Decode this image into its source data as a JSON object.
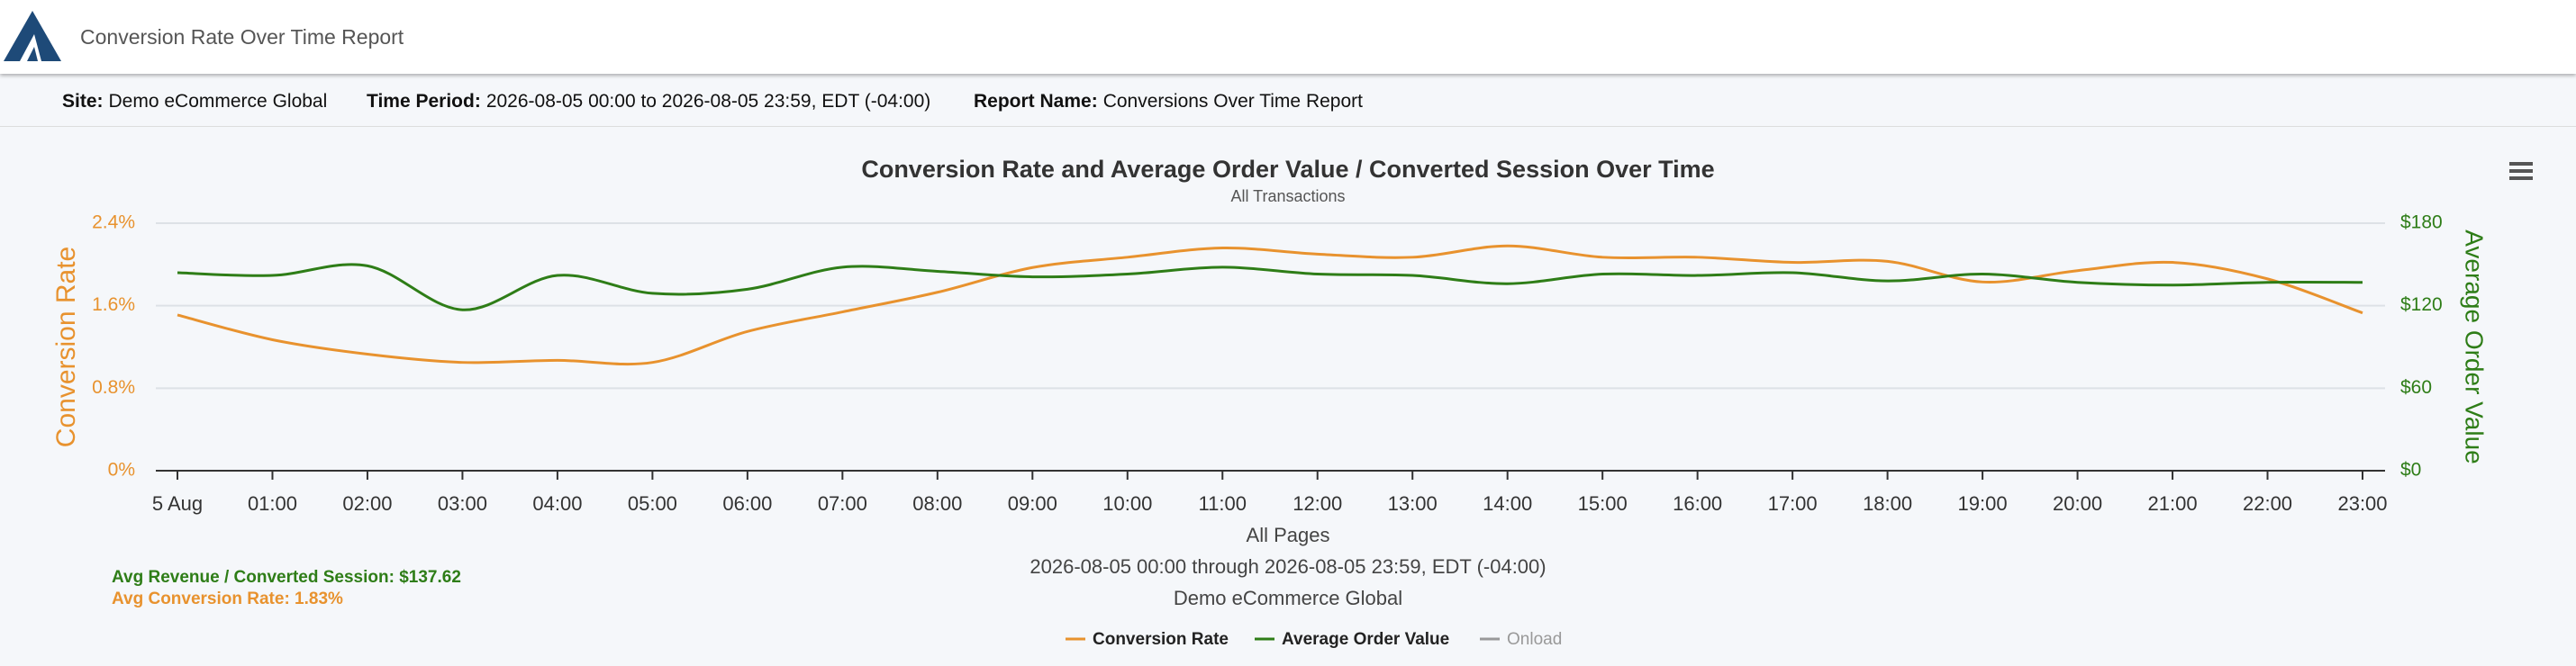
{
  "header": {
    "title": "Conversion Rate Over Time Report"
  },
  "info": [
    {
      "label": "Site:",
      "value": "Demo eCommerce Global"
    },
    {
      "label": "Time Period:",
      "value": "2026-08-05 00:00 to 2026-08-05 23:59, EDT (-04:00)"
    },
    {
      "label": "Report Name:",
      "value": "Conversions Over Time Report"
    }
  ],
  "chart_data": {
    "type": "line",
    "title": "Conversion Rate and Average Order Value / Converted Session Over Time",
    "subtitle": "All Transactions",
    "ylabel": "Conversion Rate",
    "y2label": "Average Order Value",
    "xlabel": "All Pages",
    "caption": [
      "2026-08-05 00:00 through 2026-08-05 23:59, EDT (-04:00)",
      "Demo eCommerce Global"
    ],
    "summary": [
      {
        "text": "Avg Revenue / Converted Session: $137.62",
        "color": "#2e7d17"
      },
      {
        "text": "Avg Conversion Rate: 1.83%",
        "color": "#e8922e"
      }
    ],
    "categories": [
      "5 Aug",
      "01:00",
      "02:00",
      "03:00",
      "04:00",
      "05:00",
      "06:00",
      "07:00",
      "08:00",
      "09:00",
      "10:00",
      "11:00",
      "12:00",
      "13:00",
      "14:00",
      "15:00",
      "16:00",
      "17:00",
      "18:00",
      "19:00",
      "20:00",
      "21:00",
      "22:00",
      "23:00"
    ],
    "series": [
      {
        "name": "Conversion Rate",
        "color": "#e8922e",
        "axis": "y",
        "values": [
          1.51,
          1.27,
          1.13,
          1.05,
          1.07,
          1.05,
          1.35,
          1.54,
          1.73,
          1.97,
          2.07,
          2.16,
          2.1,
          2.07,
          2.18,
          2.07,
          2.07,
          2.02,
          2.03,
          1.83,
          1.94,
          2.02,
          1.86,
          1.53
        ]
      },
      {
        "name": "Average Order Value",
        "color": "#2e7d17",
        "axis": "y2",
        "values": [
          144,
          142,
          149,
          117,
          142,
          129,
          132,
          148,
          145,
          141,
          143,
          148,
          143,
          142,
          136,
          143,
          142,
          144,
          138,
          143,
          137,
          135,
          137,
          137
        ]
      }
    ],
    "legend_inactive": [
      {
        "name": "Onload",
        "color": "#999999"
      }
    ],
    "ylim": [
      0,
      2.4
    ],
    "yticks": [
      {
        "value": 0,
        "label": "0%"
      },
      {
        "value": 0.8,
        "label": "0.8%"
      },
      {
        "value": 1.6,
        "label": "1.6%"
      },
      {
        "value": 2.4,
        "label": "2.4%"
      }
    ],
    "y2lim": [
      0,
      180
    ],
    "y2ticks": [
      {
        "value": 0,
        "label": "$0"
      },
      {
        "value": 60,
        "label": "$60"
      },
      {
        "value": 120,
        "label": "$120"
      },
      {
        "value": 180,
        "label": "$180"
      }
    ],
    "grid": true
  }
}
